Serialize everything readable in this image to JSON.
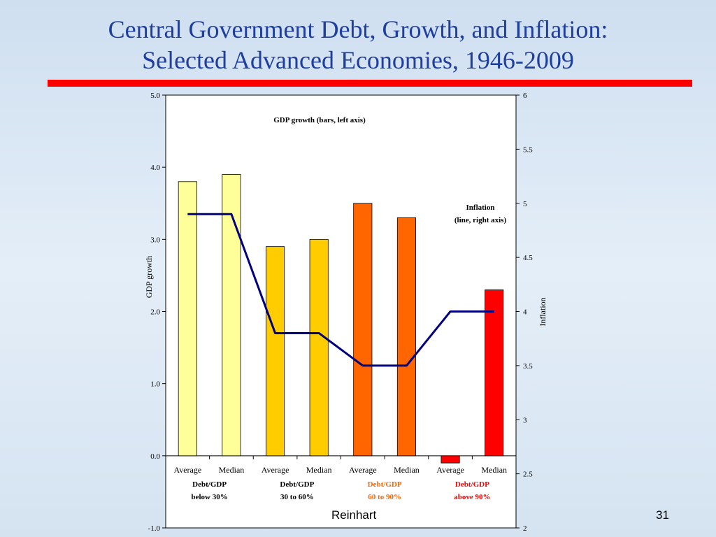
{
  "slide": {
    "title_line1": "Central Government Debt, Growth, and Inflation:",
    "title_line2": "Selected Advanced Economies, 1946-2009",
    "author": "Reinhart",
    "page_number": "31",
    "accent_color": "#ff0000",
    "title_color": "#1f3f9f"
  },
  "chart_data": {
    "type": "bar",
    "categories": [
      "Average",
      "Median",
      "Average",
      "Median",
      "Average",
      "Median",
      "Average",
      "Median"
    ],
    "groups": [
      {
        "line1": "Debt/GDP",
        "line2": "below 30%",
        "color": "#000000"
      },
      {
        "line1": "Debt/GDP",
        "line2": "30 to 60%",
        "color": "#000000"
      },
      {
        "line1": "Debt/GDP",
        "line2": "60 to 90%",
        "color": "#ff6600"
      },
      {
        "line1": "Debt/GDP",
        "line2": "above 90%",
        "color": "#ff0000"
      }
    ],
    "series": [
      {
        "name": "GDP growth (bars, left axis)",
        "type": "bar",
        "axis": "left",
        "values": [
          3.8,
          3.9,
          2.9,
          3.0,
          3.5,
          3.3,
          -0.1,
          2.3
        ],
        "colors": [
          "#ffff99",
          "#ffff99",
          "#ffcc00",
          "#ffcc00",
          "#ff6600",
          "#ff6600",
          "#ff0000",
          "#ff0000"
        ]
      },
      {
        "name": "Inflation",
        "name_line2": "(line, right axis)",
        "type": "line",
        "axis": "right",
        "values": [
          4.9,
          4.9,
          3.8,
          3.8,
          3.5,
          3.5,
          4.0,
          4.0
        ],
        "color": "#000080"
      }
    ],
    "ylabel": "GDP growth",
    "ylabel_right": "Inflation",
    "ylim": [
      -1.0,
      5.0
    ],
    "yticks": [
      "5.0",
      "4.0",
      "3.0",
      "2.0",
      "1.0",
      "0.0",
      "-1.0"
    ],
    "ylim_right": [
      2,
      6
    ],
    "yticks_right": [
      "6",
      "5.5",
      "5",
      "4.5",
      "4",
      "3.5",
      "3",
      "2.5",
      "2"
    ],
    "grid": false,
    "legend": "inline labels"
  }
}
